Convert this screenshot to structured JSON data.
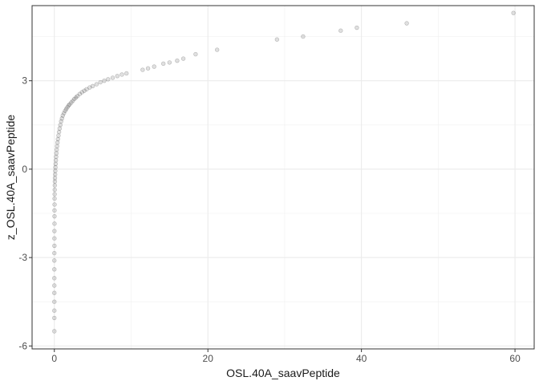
{
  "chart_data": {
    "type": "scatter",
    "title": "",
    "xlabel": "OSL.40A_saavPeptide",
    "ylabel": "z_OSL.40A_saavPeptide",
    "xlim": [
      -2.9,
      62.5
    ],
    "ylim": [
      -6.1,
      5.55
    ],
    "x_ticks": [
      0,
      20,
      40,
      60
    ],
    "x_tick_labels": [
      "0",
      "20",
      "40",
      "60"
    ],
    "y_ticks": [
      -6,
      -3,
      0,
      3
    ],
    "y_tick_labels": [
      "-6",
      "-3",
      "0",
      "3"
    ],
    "grid": true,
    "legend": "none",
    "point_color": "#000000",
    "point_alpha": 0.15,
    "series": [
      {
        "name": "z_OSL.40A_saavPeptide",
        "x": [
          0.0,
          0.0,
          0.0,
          0.0,
          0.0,
          0.0,
          0.0,
          0.0,
          0.0,
          0.0,
          0.01,
          0.01,
          0.01,
          0.02,
          0.02,
          0.02,
          0.03,
          0.03,
          0.04,
          0.05,
          0.06,
          0.07,
          0.08,
          0.1,
          0.12,
          0.14,
          0.17,
          0.2,
          0.23,
          0.27,
          0.31,
          0.36,
          0.41,
          0.47,
          0.54,
          0.61,
          0.69,
          0.78,
          0.88,
          0.99,
          1.1,
          1.25,
          1.4,
          1.55,
          1.7,
          1.85,
          2.0,
          2.2,
          2.4,
          2.6,
          2.8,
          3.0,
          3.3,
          3.6,
          3.9,
          4.2,
          4.6,
          5.0,
          5.5,
          6.0,
          6.5,
          7.0,
          7.6,
          8.2,
          8.8,
          9.4,
          11.5,
          12.2,
          13.0,
          14.2,
          15.0,
          16.0,
          16.8,
          18.4,
          21.2,
          29.0,
          32.4,
          37.3,
          39.4,
          45.9,
          59.8
        ],
        "y": [
          -5.5,
          -5.05,
          -4.8,
          -4.5,
          -4.2,
          -3.95,
          -3.7,
          -3.4,
          -3.1,
          -2.85,
          -2.6,
          -2.35,
          -2.1,
          -1.85,
          -1.6,
          -1.4,
          -1.2,
          -1.0,
          -0.85,
          -0.7,
          -0.55,
          -0.42,
          -0.3,
          -0.18,
          -0.06,
          0.06,
          0.18,
          0.3,
          0.42,
          0.54,
          0.66,
          0.78,
          0.9,
          1.02,
          1.14,
          1.26,
          1.38,
          1.5,
          1.62,
          1.72,
          1.82,
          1.9,
          1.98,
          2.04,
          2.1,
          2.16,
          2.2,
          2.26,
          2.32,
          2.38,
          2.43,
          2.48,
          2.55,
          2.61,
          2.66,
          2.71,
          2.77,
          2.82,
          2.88,
          2.95,
          3.0,
          3.05,
          3.1,
          3.16,
          3.21,
          3.25,
          3.37,
          3.42,
          3.48,
          3.58,
          3.62,
          3.68,
          3.75,
          3.9,
          4.05,
          4.4,
          4.5,
          4.7,
          4.8,
          4.95,
          5.3
        ]
      }
    ]
  }
}
